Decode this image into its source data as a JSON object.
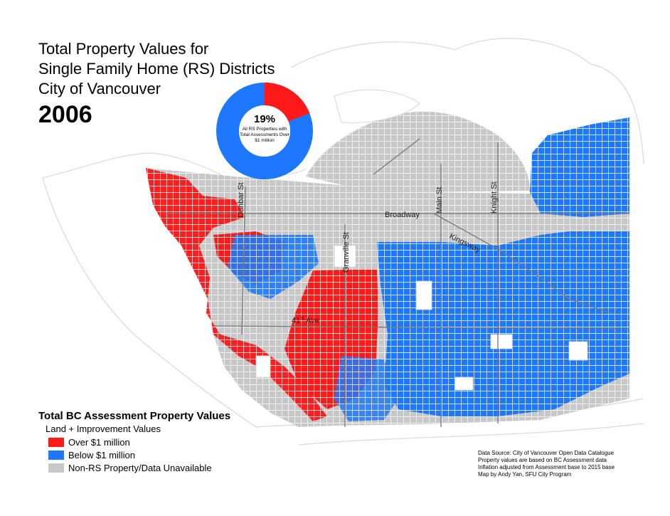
{
  "title": {
    "line1": "Total Property Values for",
    "line2": "Single Family Home (RS) Districts",
    "line3": "City of Vancouver",
    "year": "2006"
  },
  "donut": {
    "percent_label": "19%",
    "caption": "All RS Properties with Total Assessments Over $1 million",
    "share_over": 0.19
  },
  "roads": {
    "dunbar": "Dunbar St",
    "granville": "Granville St",
    "main": "Main St",
    "knight": "Knight St",
    "broadway": "Broadway",
    "kingsway": "Kingsway",
    "ave41_prefix": "41",
    "ave41_sup": "st",
    "ave41_suffix": " Ave"
  },
  "legend": {
    "title": "Total BC Assessment Property Values",
    "subtitle": "Land + Improvement Values",
    "items": [
      {
        "label": "Over $1 million",
        "color": "#ff1a1a"
      },
      {
        "label": "Below $1 million",
        "color": "#1e78ff"
      },
      {
        "label": "Non-RS Property/Data Unavailable",
        "color": "#c8c8c8"
      }
    ]
  },
  "source": {
    "line1": "Data Source: City of Vancouver Open Data Catalogue",
    "line2": "Property values are based on BC Assessment data",
    "line3": "Inflation adjusted from Assessment base to 2015 base",
    "line4": "Map by Andy Yan, SFU City Program"
  },
  "colors": {
    "over": "#ff1a1a",
    "below": "#1e78ff",
    "nonrs": "#c8c8c8",
    "outline": "#d8d8d8"
  }
}
